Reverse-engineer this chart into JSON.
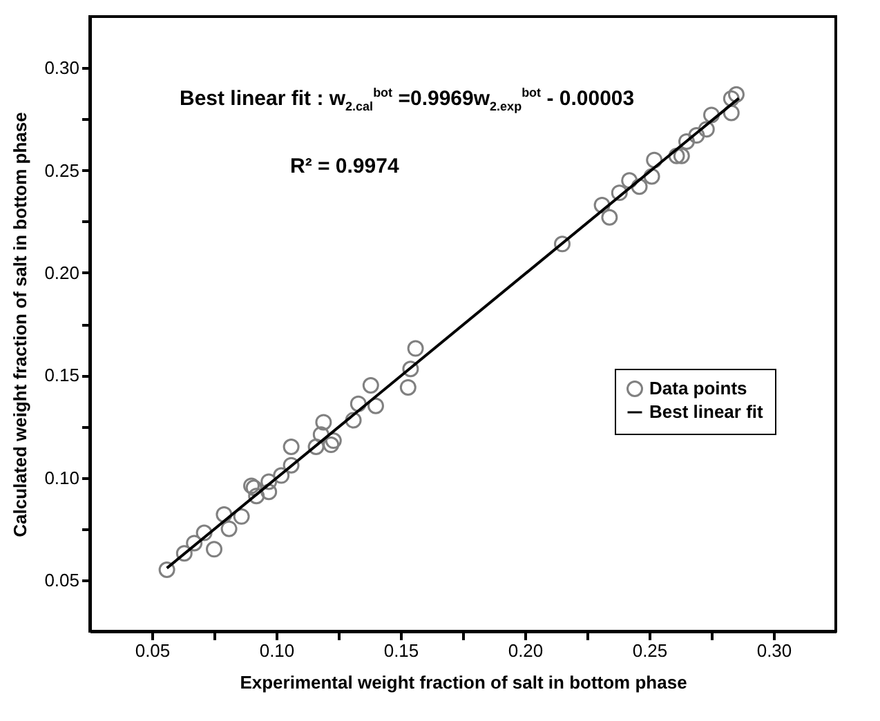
{
  "chart_data": {
    "type": "scatter",
    "xlabel": "Experimental weight fraction of salt in bottom phase",
    "ylabel": "Calculated weight fraction of salt in bottom phase",
    "annotations": [
      "Best linear fit : w$_{2.cal}$$^{bot}$ =0.9969w$_{2.exp}$$^{bot}$ - 0.00003",
      "R² = 0.9974"
    ],
    "xlim": [
      0.025,
      0.325
    ],
    "ylim": [
      0.025,
      0.325
    ],
    "xticks": [
      0.05,
      {
        "value": 0.075,
        "label": null
      },
      "0.10",
      {
        "value": 0.125,
        "label": null
      },
      0.15,
      {
        "value": 0.175,
        "label": null
      },
      "0.20",
      {
        "value": 0.225,
        "label": null
      },
      0.25,
      {
        "value": 0.275,
        "label": null
      },
      "0.30"
    ],
    "yticks": [
      0.05,
      {
        "value": 0.075,
        "label": null
      },
      "0.10",
      {
        "value": 0.125,
        "label": null
      },
      0.15,
      {
        "value": 0.175,
        "label": null
      },
      "0.20",
      {
        "value": 0.225,
        "label": null
      },
      0.25,
      {
        "value": 0.275,
        "label": null
      },
      "0.30"
    ],
    "legend": "right",
    "series": [
      {
        "name": "Data points",
        "color": "#808080",
        "marker": "circle",
        "x": [
          0.056,
          0.063,
          0.067,
          0.071,
          0.075,
          0.079,
          0.081,
          0.086,
          0.09,
          0.091,
          0.092,
          0.097,
          0.097,
          0.102,
          0.106,
          0.106,
          0.116,
          0.122,
          0.118,
          0.119,
          0.123,
          0.131,
          0.133,
          0.14,
          0.138,
          0.153,
          0.154,
          0.156,
          0.215,
          0.231,
          0.234,
          0.238,
          0.242,
          0.246,
          0.251,
          0.252,
          0.261,
          0.263,
          0.265,
          0.269,
          0.273,
          0.275,
          0.283,
          0.283,
          0.285
        ],
        "values": [
          0.055,
          0.063,
          0.068,
          0.073,
          0.065,
          0.082,
          0.075,
          0.081,
          0.096,
          0.095,
          0.091,
          0.093,
          0.098,
          0.101,
          0.115,
          0.106,
          0.115,
          0.116,
          0.121,
          0.127,
          0.118,
          0.128,
          0.136,
          0.135,
          0.145,
          0.144,
          0.153,
          0.163,
          0.214,
          0.233,
          0.227,
          0.239,
          0.245,
          0.242,
          0.247,
          0.255,
          0.257,
          0.257,
          0.264,
          0.267,
          0.27,
          0.277,
          0.278,
          0.285,
          0.287
        ]
      },
      {
        "name": "Best linear fit",
        "type": "line",
        "color": "#000000",
        "line_style": "solid",
        "x": [
          0.056,
          0.286
        ],
        "values": [
          0.0558,
          0.2851
        ]
      }
    ]
  }
}
